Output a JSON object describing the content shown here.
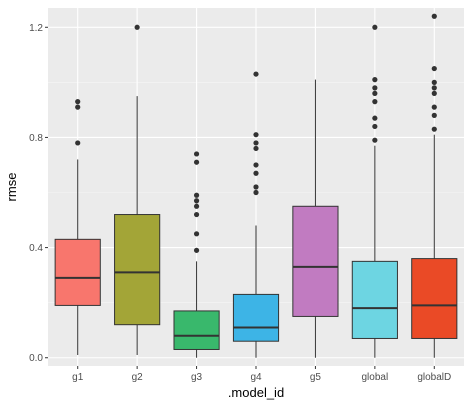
{
  "chart_data": {
    "type": "boxplot",
    "title": "",
    "xlabel": ".model_id",
    "ylabel": "rmse",
    "ylim": [
      -0.03,
      1.27
    ],
    "y_ticks": [
      0.0,
      0.4,
      0.8,
      1.2
    ],
    "y_tick_labels": [
      "0.0",
      "0.4",
      "0.8",
      "1.2"
    ],
    "grid": true,
    "legend": "none",
    "categories": [
      "g1",
      "g2",
      "g3",
      "g4",
      "g5",
      "global",
      "globalD"
    ],
    "boxes": [
      {
        "name": "g1",
        "color": "#F8766D",
        "whisker_low": 0.01,
        "q1": 0.19,
        "median": 0.29,
        "q3": 0.43,
        "whisker_high": 0.72,
        "outliers": [
          0.78,
          0.91,
          0.93
        ]
      },
      {
        "name": "g2",
        "color": "#A3A537",
        "whisker_low": 0.01,
        "q1": 0.12,
        "median": 0.31,
        "q3": 0.52,
        "whisker_high": 0.95,
        "outliers": [
          1.2
        ]
      },
      {
        "name": "g3",
        "color": "#39B86C",
        "whisker_low": 0.0,
        "q1": 0.03,
        "median": 0.08,
        "q3": 0.17,
        "whisker_high": 0.35,
        "outliers": [
          0.39,
          0.45,
          0.52,
          0.55,
          0.57,
          0.59,
          0.71,
          0.74
        ]
      },
      {
        "name": "g4",
        "color": "#3DB4E6",
        "whisker_low": 0.0,
        "q1": 0.06,
        "median": 0.11,
        "q3": 0.23,
        "whisker_high": 0.48,
        "outliers": [
          0.6,
          0.62,
          0.67,
          0.7,
          0.76,
          0.78,
          0.81,
          1.03
        ]
      },
      {
        "name": "g5",
        "color": "#C17BC1",
        "whisker_low": 0.0,
        "q1": 0.15,
        "median": 0.33,
        "q3": 0.55,
        "whisker_high": 1.01,
        "outliers": []
      },
      {
        "name": "global",
        "color": "#6DD5E2",
        "whisker_low": 0.0,
        "q1": 0.07,
        "median": 0.18,
        "q3": 0.35,
        "whisker_high": 0.77,
        "outliers": [
          0.79,
          0.84,
          0.87,
          0.93,
          0.96,
          0.98,
          1.01,
          1.2
        ]
      },
      {
        "name": "globalD",
        "color": "#EA4A26",
        "whisker_low": 0.0,
        "q1": 0.07,
        "median": 0.19,
        "q3": 0.36,
        "whisker_high": 0.81,
        "outliers": [
          0.83,
          0.88,
          0.91,
          0.96,
          0.98,
          1.0,
          1.05,
          1.24
        ]
      }
    ]
  }
}
